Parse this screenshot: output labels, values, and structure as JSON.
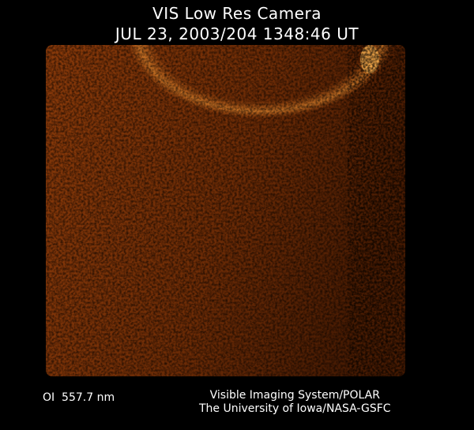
{
  "header": {
    "title": "VIS Low Res Camera",
    "timestamp": "JUL 23, 2003/204 1348:46 UT"
  },
  "footer": {
    "wavelength": "OI  557.7 nm",
    "credit_line1": "Visible Imaging System/POLAR",
    "credit_line2": "The University of Iowa/NASA-GSFC"
  },
  "colors": {
    "background": "#000000",
    "image_base": "#7a3208",
    "aurora_glow": "#f0a040"
  }
}
